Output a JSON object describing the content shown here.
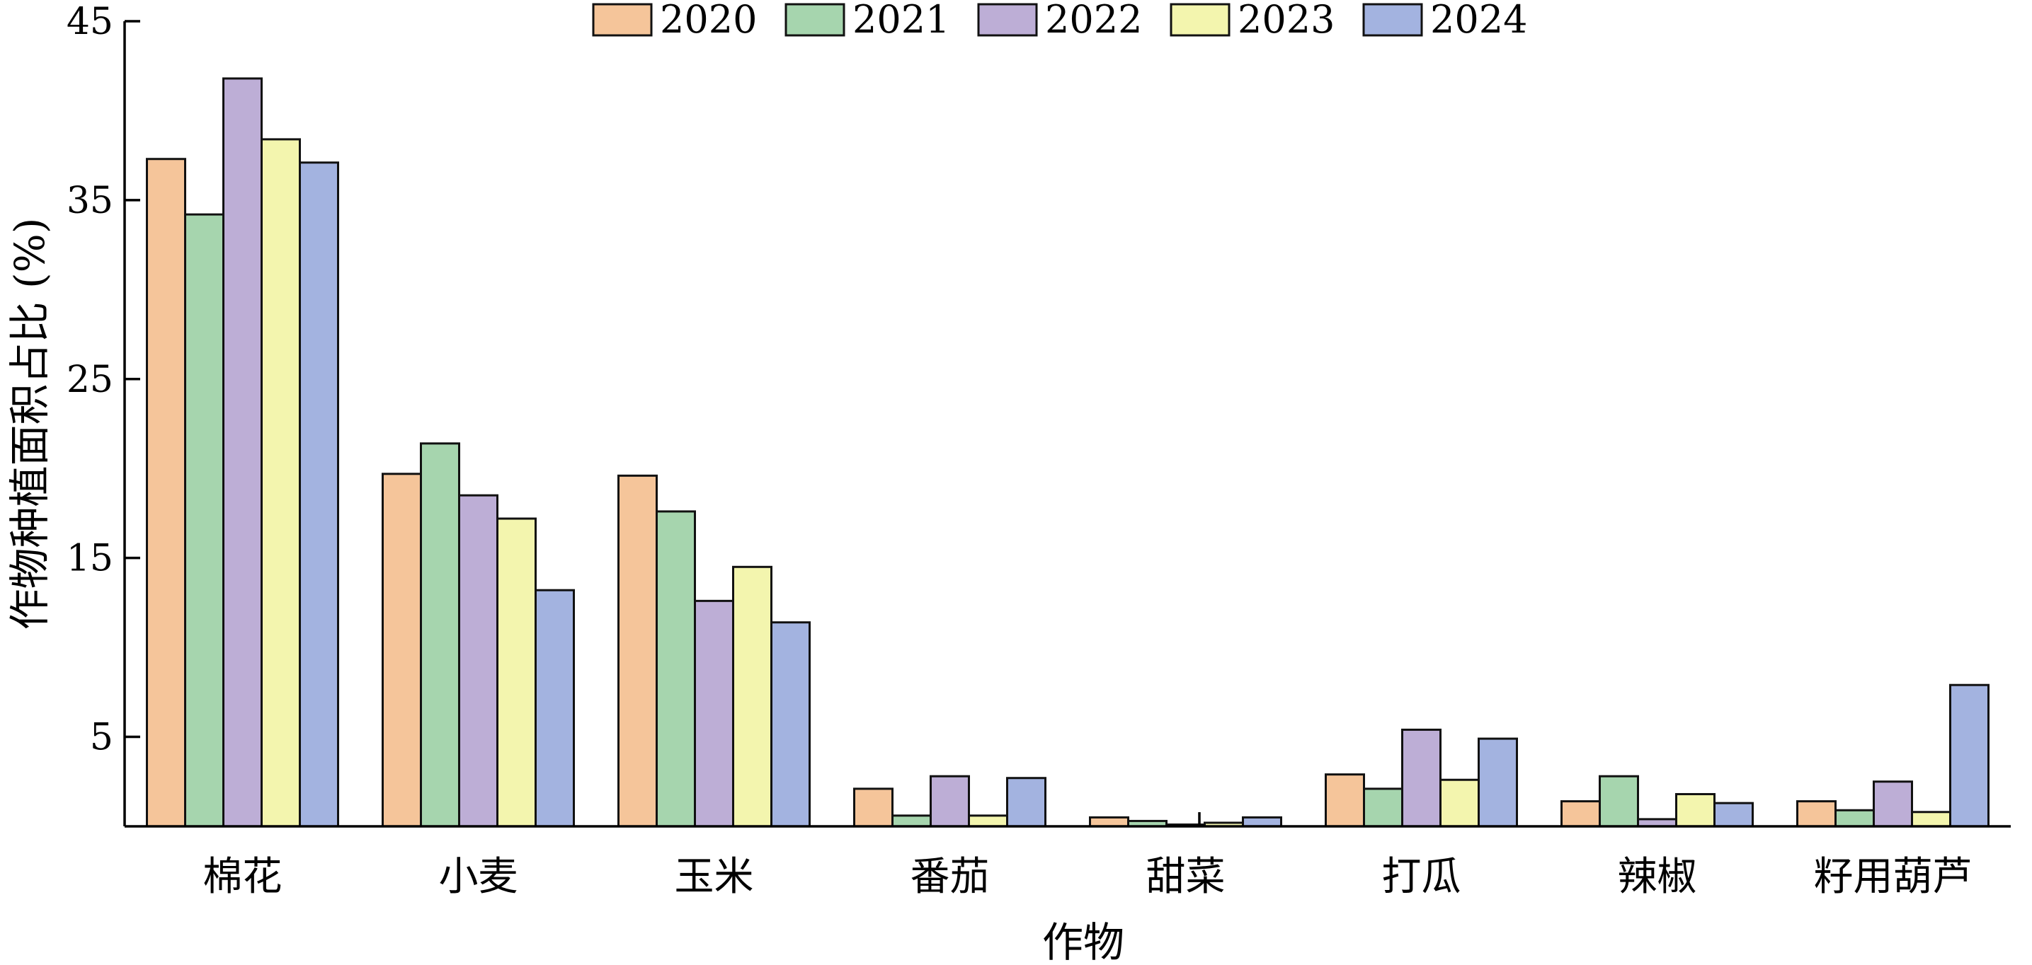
{
  "chart_data": {
    "type": "bar",
    "title": "",
    "xlabel": "作物",
    "ylabel": "作物种植面积占比 (%)",
    "ylim": [
      0,
      45
    ],
    "yticks": [
      5,
      15,
      25,
      35,
      45
    ],
    "grid": false,
    "legend_position": "top-center",
    "categories": [
      "棉花",
      "小麦",
      "玉米",
      "番茄",
      "甜菜",
      "打瓜",
      "辣椒",
      "籽用葫芦"
    ],
    "series": [
      {
        "name": "2020",
        "color": "#F5C59A",
        "values": [
          37.3,
          19.7,
          19.6,
          2.1,
          0.5,
          2.9,
          1.4,
          1.4
        ]
      },
      {
        "name": "2021",
        "color": "#A6D5AE",
        "values": [
          34.2,
          21.4,
          17.6,
          0.6,
          0.3,
          2.1,
          2.8,
          0.9
        ]
      },
      {
        "name": "2022",
        "color": "#BDAED6",
        "values": [
          41.8,
          18.5,
          12.6,
          2.8,
          0.1,
          5.4,
          0.4,
          2.5
        ]
      },
      {
        "name": "2023",
        "color": "#F3F5AE",
        "values": [
          38.4,
          17.2,
          14.5,
          0.6,
          0.2,
          2.6,
          1.8,
          0.8
        ]
      },
      {
        "name": "2024",
        "color": "#A3B3E0",
        "values": [
          37.1,
          13.2,
          11.4,
          2.7,
          0.5,
          4.9,
          1.3,
          7.9
        ]
      }
    ]
  }
}
